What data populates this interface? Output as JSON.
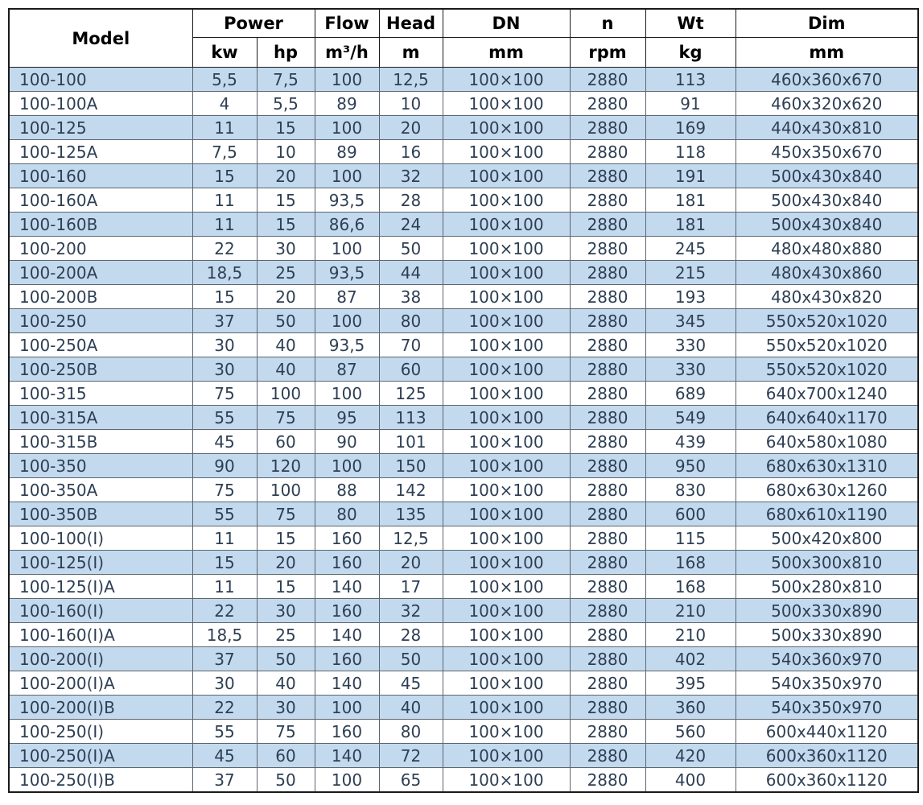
{
  "table": {
    "header": {
      "model": "Model",
      "power": "Power",
      "flow": "Flow",
      "head": "Head",
      "dn": "DN",
      "n": "n",
      "wt": "Wt",
      "dim": "Dim",
      "units": [
        "kw",
        "hp",
        "m³/h",
        "m",
        "mm",
        "rpm",
        "kg",
        "mm"
      ]
    },
    "column_keys": [
      "model",
      "power-kw",
      "power-hp",
      "flow-m3h",
      "head-m",
      "dn-mm",
      "n-rpm",
      "wt-kg",
      "dim-mm"
    ],
    "rows": [
      [
        "100-100",
        "5,5",
        "7,5",
        "100",
        "12,5",
        "100×100",
        "2880",
        "113",
        "460x360x670"
      ],
      [
        "100-100A",
        "4",
        "5,5",
        "89",
        "10",
        "100×100",
        "2880",
        "91",
        "460x320x620"
      ],
      [
        "100-125",
        "11",
        "15",
        "100",
        "20",
        "100×100",
        "2880",
        "169",
        "440x430x810"
      ],
      [
        "100-125A",
        "7,5",
        "10",
        "89",
        "16",
        "100×100",
        "2880",
        "118",
        "450x350x670"
      ],
      [
        "100-160",
        "15",
        "20",
        "100",
        "32",
        "100×100",
        "2880",
        "191",
        "500x430x840"
      ],
      [
        "100-160A",
        "11",
        "15",
        "93,5",
        "28",
        "100×100",
        "2880",
        "181",
        "500x430x840"
      ],
      [
        "100-160B",
        "11",
        "15",
        "86,6",
        "24",
        "100×100",
        "2880",
        "181",
        "500x430x840"
      ],
      [
        "100-200",
        "22",
        "30",
        "100",
        "50",
        "100×100",
        "2880",
        "245",
        "480x480x880"
      ],
      [
        "100-200A",
        "18,5",
        "25",
        "93,5",
        "44",
        "100×100",
        "2880",
        "215",
        "480x430x860"
      ],
      [
        "100-200B",
        "15",
        "20",
        "87",
        "38",
        "100×100",
        "2880",
        "193",
        "480x430x820"
      ],
      [
        "100-250",
        "37",
        "50",
        "100",
        "80",
        "100×100",
        "2880",
        "345",
        "550x520x1020"
      ],
      [
        "100-250A",
        "30",
        "40",
        "93,5",
        "70",
        "100×100",
        "2880",
        "330",
        "550x520x1020"
      ],
      [
        "100-250B",
        "30",
        "40",
        "87",
        "60",
        "100×100",
        "2880",
        "330",
        "550x520x1020"
      ],
      [
        "100-315",
        "75",
        "100",
        "100",
        "125",
        "100×100",
        "2880",
        "689",
        "640x700x1240"
      ],
      [
        "100-315A",
        "55",
        "75",
        "95",
        "113",
        "100×100",
        "2880",
        "549",
        "640x640x1170"
      ],
      [
        "100-315B",
        "45",
        "60",
        "90",
        "101",
        "100×100",
        "2880",
        "439",
        "640x580x1080"
      ],
      [
        "100-350",
        "90",
        "120",
        "100",
        "150",
        "100×100",
        "2880",
        "950",
        "680x630x1310"
      ],
      [
        "100-350A",
        "75",
        "100",
        "88",
        "142",
        "100×100",
        "2880",
        "830",
        "680x630x1260"
      ],
      [
        "100-350B",
        "55",
        "75",
        "80",
        "135",
        "100×100",
        "2880",
        "600",
        "680x610x1190"
      ],
      [
        "100-100(I)",
        "11",
        "15",
        "160",
        "12,5",
        "100×100",
        "2880",
        "115",
        "500x420x800"
      ],
      [
        "100-125(I)",
        "15",
        "20",
        "160",
        "20",
        "100×100",
        "2880",
        "168",
        "500x300x810"
      ],
      [
        "100-125(I)A",
        "11",
        "15",
        "140",
        "17",
        "100×100",
        "2880",
        "168",
        "500x280x810"
      ],
      [
        "100-160(I)",
        "22",
        "30",
        "160",
        "32",
        "100×100",
        "2880",
        "210",
        "500x330x890"
      ],
      [
        "100-160(I)A",
        "18,5",
        "25",
        "140",
        "28",
        "100×100",
        "2880",
        "210",
        "500x330x890"
      ],
      [
        "100-200(I)",
        "37",
        "50",
        "160",
        "50",
        "100×100",
        "2880",
        "402",
        "540x360x970"
      ],
      [
        "100-200(I)A",
        "30",
        "40",
        "140",
        "45",
        "100×100",
        "2880",
        "395",
        "540x350x970"
      ],
      [
        "100-200(I)B",
        "22",
        "30",
        "100",
        "40",
        "100×100",
        "2880",
        "360",
        "540x350x970"
      ],
      [
        "100-250(I)",
        "55",
        "75",
        "160",
        "80",
        "100×100",
        "2880",
        "560",
        "600x440x1120"
      ],
      [
        "100-250(I)A",
        "45",
        "60",
        "140",
        "72",
        "100×100",
        "2880",
        "420",
        "600x360x1120"
      ],
      [
        "100-250(I)B",
        "37",
        "50",
        "100",
        "65",
        "100×100",
        "2880",
        "400",
        "600x360x1120"
      ]
    ]
  },
  "colors": {
    "row_stripe": "#c3daee",
    "row_plain": "#ffffff",
    "body_text": "#2e3f54",
    "header_text": "#000000",
    "header_border": "#1a1a1a",
    "body_border": "#5c6670"
  }
}
